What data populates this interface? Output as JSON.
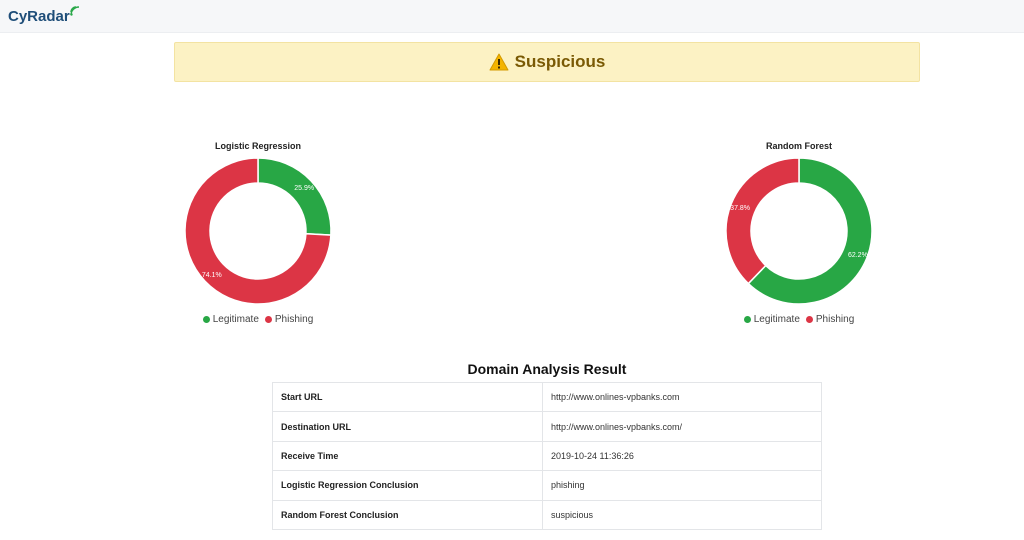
{
  "header": {
    "logo_text": "CyRadar",
    "logo_icon": "radar-wave-icon"
  },
  "alert": {
    "icon": "warning-icon",
    "text": "Suspicious",
    "color": "#fcf2c4"
  },
  "colors": {
    "legitimate": "#28a745",
    "phishing": "#dc3545"
  },
  "chart_data": [
    {
      "type": "pie",
      "title": "Logistic Regression",
      "categories": [
        "Legitimate",
        "Phishing"
      ],
      "values": [
        25.9,
        74.1
      ],
      "labels": [
        "25.9%",
        "74.1%"
      ],
      "colors": [
        "#28a745",
        "#dc3545"
      ],
      "legend": "bottom"
    },
    {
      "type": "pie",
      "title": "Random Forest",
      "categories": [
        "Legitimate",
        "Phishing"
      ],
      "values": [
        62.2,
        37.8
      ],
      "labels": [
        "62.2%",
        "37.8%"
      ],
      "colors": [
        "#28a745",
        "#dc3545"
      ],
      "legend": "bottom"
    }
  ],
  "result": {
    "title": "Domain Analysis Result",
    "rows": [
      {
        "key": "Start URL",
        "value": "http://www.onlines-vpbanks.com"
      },
      {
        "key": "Destination URL",
        "value": "http://www.onlines-vpbanks.com/"
      },
      {
        "key": "Receive Time",
        "value": "2019-10-24 11:36:26"
      },
      {
        "key": "Logistic Regression Conclusion",
        "value": "phishing"
      },
      {
        "key": "Random Forest Conclusion",
        "value": "suspicious"
      }
    ]
  }
}
